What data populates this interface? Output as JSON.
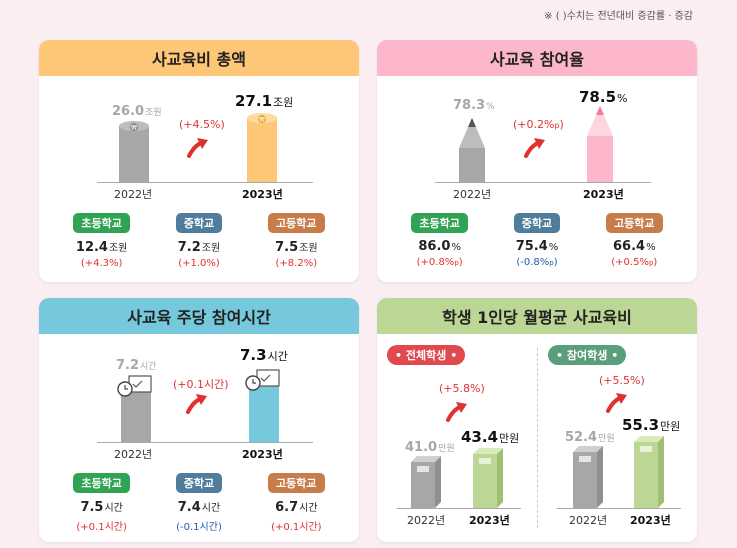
{
  "note": "※ (      )수치는 전년대비 증감률 · 증감",
  "chart_data": [
    {
      "type": "bar",
      "title": "사교육비 총액",
      "categories": [
        "2022년",
        "2023년"
      ],
      "values": [
        26.0,
        27.1
      ],
      "value_labels": [
        "26.0",
        "27.1"
      ],
      "unit": "조원",
      "change": "(+4.5%)",
      "breakdown": [
        {
          "name": "초등학교",
          "value": "12.4",
          "unit": "조원",
          "change": "(+4.3%)"
        },
        {
          "name": "중학교",
          "value": "7.2",
          "unit": "조원",
          "change": "(+1.0%)"
        },
        {
          "name": "고등학교",
          "value": "7.5",
          "unit": "조원",
          "change": "(+8.2%)"
        }
      ]
    },
    {
      "type": "bar",
      "title": "사교육 참여율",
      "categories": [
        "2022년",
        "2023년"
      ],
      "values": [
        78.3,
        78.5
      ],
      "value_labels": [
        "78.3",
        "78.5"
      ],
      "unit": "%",
      "change_main": "(+0.2%",
      "change_sub": "p",
      "change_close": ")",
      "breakdown": [
        {
          "name": "초등학교",
          "value": "86.0",
          "unit": "%",
          "change": "(+0.8%",
          "change_sub": "p",
          "change_close": ")"
        },
        {
          "name": "중학교",
          "value": "75.4",
          "unit": "%",
          "change": "(-0.8%",
          "change_sub": "p",
          "change_close": ")"
        },
        {
          "name": "고등학교",
          "value": "66.4",
          "unit": "%",
          "change": "(+0.5%",
          "change_sub": "p",
          "change_close": ")"
        }
      ]
    },
    {
      "type": "bar",
      "title": "사교육 주당 참여시간",
      "categories": [
        "2022년",
        "2023년"
      ],
      "values": [
        7.2,
        7.3
      ],
      "value_labels": [
        "7.2",
        "7.3"
      ],
      "unit": "시간",
      "change": "(+0.1시간)",
      "breakdown": [
        {
          "name": "초등학교",
          "value": "7.5",
          "unit": "시간",
          "change": "(+0.1시간)"
        },
        {
          "name": "중학교",
          "value": "7.4",
          "unit": "시간",
          "change": "(-0.1시간)"
        },
        {
          "name": "고등학교",
          "value": "6.7",
          "unit": "시간",
          "change": "(+0.1시간)"
        }
      ]
    },
    {
      "type": "bar",
      "title": "학생 1인당 월평균 사교육비",
      "groups": [
        {
          "name": "전체학생",
          "categories": [
            "2022년",
            "2023년"
          ],
          "values": [
            41.0,
            43.4
          ],
          "value_labels": [
            "41.0",
            "43.4"
          ],
          "unit": "만원",
          "change": "(+5.8%)"
        },
        {
          "name": "참여학생",
          "categories": [
            "2022년",
            "2023년"
          ],
          "values": [
            52.4,
            55.3
          ],
          "value_labels": [
            "52.4",
            "55.3"
          ],
          "unit": "만원",
          "change": "(+5.5%)"
        }
      ]
    }
  ],
  "colors": {
    "total": "#fec677",
    "participation": "#fcb7ca",
    "hours": "#76c8dd",
    "monthly": "#bcd695",
    "old_bar": "#a7a7a7",
    "increase": "#e03131",
    "decrease": "#1c5fa8"
  }
}
